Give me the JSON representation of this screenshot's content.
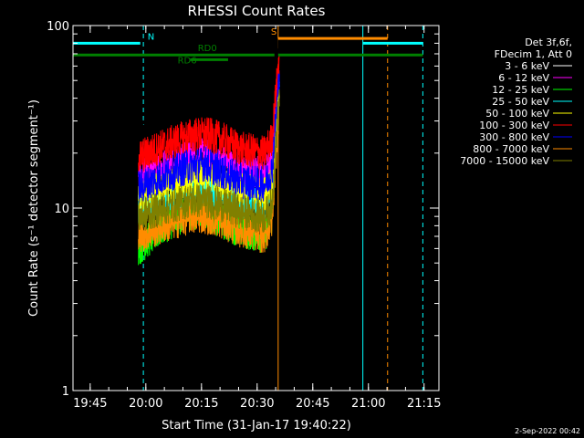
{
  "chart_data": {
    "type": "line",
    "title": "RHESSI Count Rates",
    "xlabel": "Start Time (31-Jan-17 19:40:22)",
    "ylabel": "Count Rate (s⁻¹ detector segment⁻¹)",
    "y_scale": "log",
    "ylim": [
      1,
      100
    ],
    "xlim": [
      "19:40:22",
      "21:19:00"
    ],
    "x_ticks": [
      "19:45",
      "20:00",
      "20:15",
      "20:30",
      "20:45",
      "21:00",
      "21:15"
    ],
    "y_ticks": [
      "1",
      "10",
      "100"
    ],
    "grid": false,
    "legend_position": "right",
    "legend_header": [
      "Det 3f,6f,",
      "FDecim 1, Att 0"
    ],
    "series": [
      {
        "name": "3 - 6 keV",
        "color": "#000000",
        "x": [
          "19:58",
          "20:05",
          "20:12",
          "20:16",
          "20:20",
          "20:26",
          "20:32",
          "20:34",
          "20:36"
        ],
        "values": [
          25,
          29,
          32,
          33,
          31,
          27,
          26,
          30,
          80
        ]
      },
      {
        "name": "6 - 12 keV",
        "color": "#ff00ff",
        "x": [
          "19:58",
          "20:05",
          "20:12",
          "20:16",
          "20:20",
          "20:26",
          "20:32",
          "20:34",
          "20:36"
        ],
        "values": [
          15,
          17,
          19,
          19.5,
          18,
          16,
          15.5,
          18,
          60
        ]
      },
      {
        "name": "12 - 25 keV",
        "color": "#00ff00",
        "x": [
          "19:58",
          "20:05",
          "20:12",
          "20:16",
          "20:20",
          "20:26",
          "20:32",
          "20:34",
          "20:36"
        ],
        "values": [
          6,
          8,
          9.5,
          9.5,
          8.5,
          7.5,
          7,
          9,
          50
        ]
      },
      {
        "name": "25 - 50 keV",
        "color": "#00ffff",
        "x": [
          "19:58",
          "20:05",
          "20:12",
          "20:16",
          "20:20",
          "20:26",
          "20:32",
          "20:34",
          "20:36"
        ],
        "values": [
          10,
          11.5,
          12.5,
          13,
          12,
          11,
          10.5,
          12,
          45
        ]
      },
      {
        "name": "50 - 100 keV",
        "color": "#ffff00",
        "x": [
          "19:58",
          "20:05",
          "20:12",
          "20:16",
          "20:20",
          "20:26",
          "20:32",
          "20:34",
          "20:36"
        ],
        "values": [
          11.5,
          13,
          14.5,
          15,
          14,
          12.5,
          12,
          14,
          48
        ]
      },
      {
        "name": "100 - 300 keV",
        "color": "#ff0000",
        "x": [
          "19:58",
          "20:05",
          "20:12",
          "20:16",
          "20:20",
          "20:26",
          "20:32",
          "20:34",
          "20:36"
        ],
        "values": [
          19,
          22,
          25,
          25.5,
          24,
          21,
          20,
          24,
          70
        ]
      },
      {
        "name": "300 - 800 keV",
        "color": "#0000ff",
        "x": [
          "19:58",
          "20:05",
          "20:12",
          "20:16",
          "20:20",
          "20:26",
          "20:32",
          "20:34",
          "20:36"
        ],
        "values": [
          13,
          15,
          17,
          17.5,
          16,
          14,
          13.5,
          16,
          55
        ]
      },
      {
        "name": "800 - 7000 keV",
        "color": "#ff8c00",
        "x": [
          "19:58",
          "20:05",
          "20:12",
          "20:16",
          "20:20",
          "20:26",
          "20:32",
          "20:34",
          "20:36"
        ],
        "values": [
          7,
          8,
          9,
          9,
          8.5,
          7.5,
          7,
          8.5,
          40
        ]
      },
      {
        "name": "7000 - 15000 keV",
        "color": "#808000",
        "x": [
          "19:58",
          "20:05",
          "20:12",
          "20:16",
          "20:20",
          "20:26",
          "20:32",
          "20:34",
          "20:36"
        ],
        "values": [
          9,
          10,
          11,
          11,
          10.5,
          9.5,
          9,
          10.5,
          42
        ]
      }
    ],
    "vertical_lines": [
      {
        "time": "19:40:22",
        "color": "#00ffff",
        "style": "solid"
      },
      {
        "time": "19:59:20",
        "color": "#00ffff",
        "style": "dashed"
      },
      {
        "time": "20:35:40",
        "color": "#ff8c00",
        "style": "solid"
      },
      {
        "time": "20:58:30",
        "color": "#00ffff",
        "style": "solid"
      },
      {
        "time": "21:05:10",
        "color": "#ff8c00",
        "style": "dashed"
      },
      {
        "time": "21:14:40",
        "color": "#00ffff",
        "style": "dashed"
      }
    ],
    "flag_bars": [
      {
        "label": "N",
        "color": "#00ffff",
        "segments": [
          [
            "19:40:22",
            "19:58:30"
          ],
          [
            "20:58:30",
            "21:14:40"
          ]
        ],
        "level": 80
      },
      {
        "label": "S",
        "color": "#ff8c00",
        "segments": [
          [
            "20:35:40",
            "21:05:10"
          ]
        ],
        "level": 85
      },
      {
        "label": "RD0",
        "color": "#008000",
        "segments": [
          [
            "19:40:22",
            "20:34:40"
          ],
          [
            "20:35:40",
            "21:14:40"
          ]
        ],
        "level": 69
      },
      {
        "label": "RD6",
        "color": "#008000",
        "segments": [
          [
            "20:12:00",
            "20:22:10"
          ]
        ],
        "level": 65
      }
    ],
    "annotation": "2-Sep-2022 00:42"
  }
}
